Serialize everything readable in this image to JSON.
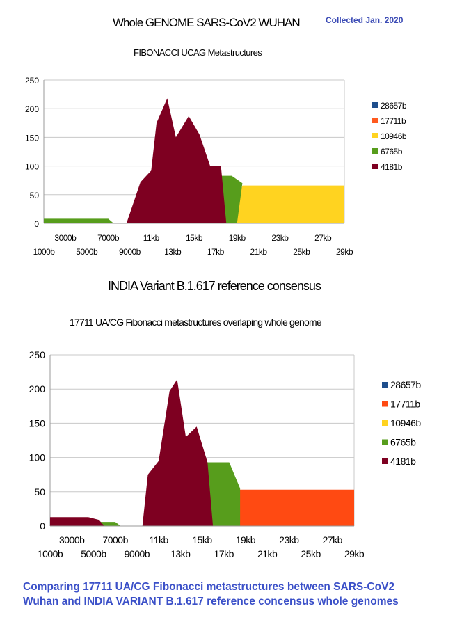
{
  "header": {
    "title": "Whole GENOME SARS-CoV2 WUHAN",
    "collected": "Collected Jan. 2020",
    "subtitle1": "FIBONACCI UCAG Metastructures",
    "title2": "INDIA Variant B.1.617 reference consensus",
    "subtitle2": "17711 UA/CG Fibonacci metastructures overlaping whole genome"
  },
  "caption": {
    "line1": "Comparing 17711 UA/CG Fibonacci metastructures between SARS-CoV2",
    "line2": "Wuhan and INDIA VARIANT B.1.617 reference concensus whole genomes"
  },
  "chart_data": [
    {
      "type": "area",
      "title": "Whole GENOME SARS-CoV2 WUHAN",
      "subtitle": "FIBONACCI UCAG Metastructures",
      "x_tick_labels_upper": [
        "3000b",
        "7000b",
        "11kb",
        "15kb",
        "19kb",
        "23kb",
        "27kb"
      ],
      "x_tick_labels_lower": [
        "1000b",
        "5000b",
        "9000b",
        "13kb",
        "17kb",
        "21kb",
        "25kb",
        "29kb"
      ],
      "x_unit": "b",
      "xlim": [
        1000,
        29000
      ],
      "ylim": [
        0,
        250
      ],
      "yticks": [
        0,
        50,
        100,
        150,
        200,
        250
      ],
      "grid": "horizontal",
      "legend_position": "right",
      "series": [
        {
          "name": "28657b",
          "color": "#1f4e8c",
          "points": []
        },
        {
          "name": "17711b",
          "color": "#ff5a1f",
          "points": [
            [
              11500,
              0
            ],
            [
              12000,
              8
            ],
            [
              29000,
              8
            ],
            [
              29000,
              0
            ]
          ]
        },
        {
          "name": "10946b",
          "color": "#ffd320",
          "points": [
            [
              18500,
              0
            ],
            [
              19500,
              66
            ],
            [
              29000,
              66
            ],
            [
              29000,
              0
            ]
          ]
        },
        {
          "name": "6765b",
          "color": "#579d1c",
          "points": [
            [
              1000,
              0
            ],
            [
              1000,
              8
            ],
            [
              7000,
              8
            ],
            [
              7500,
              0
            ],
            [
              11500,
              0
            ],
            [
              12000,
              10
            ],
            [
              13000,
              83
            ],
            [
              18500,
              83
            ],
            [
              19500,
              70
            ],
            [
              19000,
              0
            ],
            [
              1000,
              0
            ]
          ]
        },
        {
          "name": "4181b",
          "color": "#7e0021",
          "points": [
            [
              8700,
              0
            ],
            [
              10000,
              72
            ],
            [
              11000,
              92
            ],
            [
              11500,
              175
            ],
            [
              12500,
              218
            ],
            [
              13300,
              150
            ],
            [
              14500,
              187
            ],
            [
              15500,
              155
            ],
            [
              16500,
              100
            ],
            [
              17500,
              100
            ],
            [
              18000,
              0
            ]
          ]
        }
      ]
    },
    {
      "type": "area",
      "title": "INDIA Variant B.1.617 reference consensus",
      "subtitle": "17711 UA/CG Fibonacci metastructures overlaping whole genome",
      "x_tick_labels_upper": [
        "3000b",
        "7000b",
        "11kb",
        "15kb",
        "19kb",
        "23kb",
        "27kb"
      ],
      "x_tick_labels_lower": [
        "1000b",
        "5000b",
        "9000b",
        "13kb",
        "17kb",
        "21kb",
        "25kb",
        "29kb"
      ],
      "x_unit": "b",
      "xlim": [
        1000,
        29000
      ],
      "ylim": [
        0,
        250
      ],
      "yticks": [
        0,
        50,
        100,
        150,
        200,
        250
      ],
      "grid": "horizontal",
      "legend_position": "right",
      "series": [
        {
          "name": "28657b",
          "color": "#1f4e8c",
          "points": []
        },
        {
          "name": "17711b",
          "color": "#ff4a12",
          "points": [
            [
              11000,
              0
            ],
            [
              12000,
              45
            ],
            [
              12700,
              53
            ],
            [
              29000,
              53
            ],
            [
              29000,
              0
            ]
          ]
        },
        {
          "name": "10946b",
          "color": "#ffd320",
          "points": []
        },
        {
          "name": "6765b",
          "color": "#579d1c",
          "points": [
            [
              1000,
              0
            ],
            [
              1000,
              6
            ],
            [
              5000,
              6
            ],
            [
              7000,
              6
            ],
            [
              7500,
              0
            ],
            [
              12000,
              0
            ],
            [
              13500,
              93
            ],
            [
              17500,
              93
            ],
            [
              18500,
              55
            ],
            [
              18500,
              0
            ]
          ]
        },
        {
          "name": "4181b",
          "color": "#7e0021",
          "points": [
            [
              1000,
              0
            ],
            [
              1000,
              13
            ],
            [
              4500,
              13
            ],
            [
              5500,
              9
            ],
            [
              6000,
              0
            ],
            [
              9500,
              0
            ],
            [
              10000,
              75
            ],
            [
              11000,
              95
            ],
            [
              12000,
              197
            ],
            [
              12700,
              214
            ],
            [
              13500,
              130
            ],
            [
              14500,
              145
            ],
            [
              15500,
              93
            ],
            [
              16000,
              0
            ]
          ]
        }
      ]
    }
  ]
}
